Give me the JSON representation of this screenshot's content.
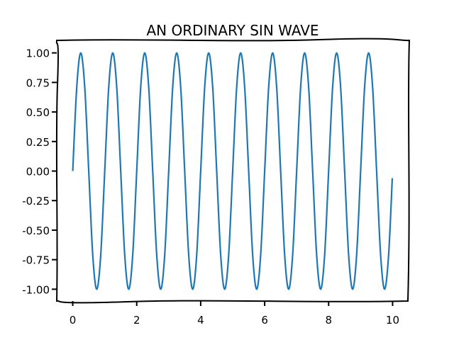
{
  "chart_data": {
    "type": "line",
    "title": "AN ORDINARY SIN WAVE",
    "xlabel": "",
    "ylabel": "",
    "xlim": [
      -0.5,
      10.5
    ],
    "ylim": [
      -1.1,
      1.1
    ],
    "grid": false,
    "style": "xkcd",
    "line_color": "#1f77b4",
    "x_ticks": [
      0,
      2,
      4,
      6,
      8,
      10
    ],
    "x_tick_labels": [
      "0",
      "2",
      "4",
      "6",
      "8",
      "10"
    ],
    "y_ticks": [
      -1,
      -0.75,
      -0.5,
      -0.25,
      0,
      0.25,
      0.5,
      0.75,
      1
    ],
    "y_tick_labels": [
      "-1.00",
      "-0.75",
      "-0.50",
      "-0.25",
      "0.00",
      "0.25",
      "0.50",
      "0.75",
      "1.00"
    ],
    "series": [
      {
        "x": [
          0,
          0.125,
          0.25,
          0.375,
          0.5,
          0.625,
          0.75,
          0.875,
          1,
          1.125,
          1.25,
          1.375,
          1.5,
          1.625,
          1.75,
          1.875,
          2,
          2.125,
          2.25,
          2.375,
          2.5,
          2.625,
          2.75,
          2.875,
          3,
          3.125,
          3.25,
          3.375,
          3.5,
          3.625,
          3.75,
          3.875,
          4,
          4.125,
          4.25,
          4.375,
          4.5,
          4.625,
          4.75,
          4.875,
          5,
          5.125,
          5.25,
          5.375,
          5.5,
          5.625,
          5.75,
          5.875,
          6,
          6.125,
          6.25,
          6.375,
          6.5,
          6.625,
          6.75,
          6.875,
          7,
          7.125,
          7.25,
          7.375,
          7.5,
          7.625,
          7.75,
          7.875,
          8,
          8.125,
          8.25,
          8.375,
          8.5,
          8.625,
          8.75,
          8.875,
          9,
          9.125,
          9.25,
          9.375,
          9.5,
          9.625,
          9.75,
          9.875,
          9.99
        ],
        "y": [
          0,
          0.71,
          1,
          0.71,
          0,
          -0.71,
          -1,
          -0.71,
          0,
          0.71,
          1,
          0.71,
          0,
          -0.71,
          -1,
          -0.71,
          0,
          0.71,
          1,
          0.71,
          0,
          -0.71,
          -1,
          -0.71,
          0,
          0.71,
          1,
          0.71,
          0,
          -0.71,
          -1,
          -0.71,
          0,
          0.71,
          1,
          0.71,
          0,
          -0.71,
          -1,
          -0.71,
          0,
          0.71,
          1,
          0.71,
          0,
          -0.71,
          -1,
          -0.71,
          0,
          0.71,
          1,
          0.71,
          0,
          -0.71,
          -1,
          -0.71,
          0,
          0.71,
          1,
          0.71,
          0,
          -0.71,
          -1,
          -0.71,
          0,
          0.71,
          1,
          0.71,
          0,
          -0.71,
          -1,
          -0.71,
          0,
          0.71,
          1,
          0.71,
          0,
          -0.71,
          -1,
          -0.71,
          -0.06
        ]
      }
    ]
  }
}
